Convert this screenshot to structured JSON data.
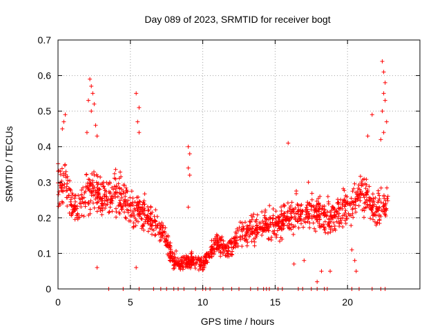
{
  "chart_data": {
    "type": "scatter",
    "title": "Day 089 of 2023, SRMTID for receiver bogt",
    "xlabel": "GPS time / hours",
    "ylabel": "SRMTID / TECUs",
    "xlim": [
      0,
      25.0
    ],
    "ylim": [
      0,
      0.7
    ],
    "x_ticks": [
      0,
      5,
      10,
      15,
      20
    ],
    "x_tick_labels": [
      "0",
      "5",
      "10",
      "15",
      "20"
    ],
    "y_ticks": [
      0,
      0.1,
      0.2,
      0.3,
      0.4,
      0.5,
      0.6,
      0.7
    ],
    "y_tick_labels": [
      "0",
      "0.1",
      "0.2",
      "0.3",
      "0.4",
      "0.5",
      "0.6",
      "0.7"
    ],
    "grid": true,
    "marker": "plus",
    "color": "#ff0000",
    "series": [
      {
        "name": "SRMTID",
        "trend": {
          "x": [
            0.0,
            0.5,
            1.0,
            1.5,
            2.0,
            2.5,
            3.0,
            3.5,
            4.0,
            4.5,
            5.0,
            5.5,
            6.0,
            6.5,
            7.0,
            7.5,
            8.0,
            8.5,
            9.0,
            9.5,
            10.0,
            10.5,
            11.0,
            11.5,
            12.0,
            12.5,
            13.0,
            13.5,
            14.0,
            14.5,
            15.0,
            15.5,
            16.0,
            16.5,
            17.0,
            17.5,
            18.0,
            18.5,
            19.0,
            19.5,
            20.0,
            20.5,
            21.0,
            21.5,
            22.0,
            22.5,
            22.8
          ],
          "y": [
            0.3,
            0.3,
            0.24,
            0.22,
            0.28,
            0.27,
            0.25,
            0.26,
            0.27,
            0.25,
            0.23,
            0.22,
            0.21,
            0.19,
            0.17,
            0.13,
            0.08,
            0.07,
            0.08,
            0.08,
            0.07,
            0.1,
            0.13,
            0.11,
            0.12,
            0.15,
            0.16,
            0.17,
            0.18,
            0.18,
            0.18,
            0.19,
            0.2,
            0.21,
            0.21,
            0.22,
            0.21,
            0.2,
            0.2,
            0.22,
            0.23,
            0.25,
            0.27,
            0.25,
            0.22,
            0.23,
            0.26
          ]
        },
        "outliers": [
          {
            "x": 0.5,
            "y": 0.49
          },
          {
            "x": 0.4,
            "y": 0.47
          },
          {
            "x": 0.3,
            "y": 0.45
          },
          {
            "x": 2.2,
            "y": 0.59
          },
          {
            "x": 2.3,
            "y": 0.57
          },
          {
            "x": 2.4,
            "y": 0.55
          },
          {
            "x": 2.1,
            "y": 0.53
          },
          {
            "x": 2.5,
            "y": 0.52
          },
          {
            "x": 2.3,
            "y": 0.5
          },
          {
            "x": 2.6,
            "y": 0.46
          },
          {
            "x": 2.0,
            "y": 0.44
          },
          {
            "x": 2.7,
            "y": 0.43
          },
          {
            "x": 2.7,
            "y": 0.06
          },
          {
            "x": 5.4,
            "y": 0.55
          },
          {
            "x": 5.6,
            "y": 0.51
          },
          {
            "x": 5.5,
            "y": 0.47
          },
          {
            "x": 5.6,
            "y": 0.44
          },
          {
            "x": 5.4,
            "y": 0.06
          },
          {
            "x": 9.0,
            "y": 0.4
          },
          {
            "x": 9.1,
            "y": 0.38
          },
          {
            "x": 9.0,
            "y": 0.34
          },
          {
            "x": 9.1,
            "y": 0.32
          },
          {
            "x": 9.0,
            "y": 0.23
          },
          {
            "x": 15.9,
            "y": 0.41
          },
          {
            "x": 17.3,
            "y": 0.3
          },
          {
            "x": 16.3,
            "y": 0.07
          },
          {
            "x": 17.0,
            "y": 0.08
          },
          {
            "x": 18.2,
            "y": 0.05
          },
          {
            "x": 17.9,
            "y": 0.02
          },
          {
            "x": 18.8,
            "y": 0.05
          },
          {
            "x": 20.3,
            "y": 0.11
          },
          {
            "x": 20.5,
            "y": 0.08
          },
          {
            "x": 20.6,
            "y": 0.05
          },
          {
            "x": 21.7,
            "y": 0.49
          },
          {
            "x": 21.4,
            "y": 0.43
          },
          {
            "x": 22.4,
            "y": 0.64
          },
          {
            "x": 22.5,
            "y": 0.61
          },
          {
            "x": 22.6,
            "y": 0.58
          },
          {
            "x": 22.5,
            "y": 0.55
          },
          {
            "x": 22.6,
            "y": 0.53
          },
          {
            "x": 22.4,
            "y": 0.5
          },
          {
            "x": 22.7,
            "y": 0.47
          },
          {
            "x": 22.5,
            "y": 0.44
          },
          {
            "x": 22.3,
            "y": 0.42
          }
        ],
        "zero_points_x": [
          3.5,
          4.5,
          5.6,
          6.6,
          7.1,
          7.5,
          8.0,
          8.3,
          8.7,
          9.5,
          10.0,
          10.2,
          10.5,
          11.4,
          12.0,
          12.5,
          13.3,
          13.8,
          14.2,
          14.4,
          14.6,
          15.2,
          15.5,
          16.6,
          16.9,
          17.5,
          17.9,
          18.4,
          18.6,
          20.3,
          20.8,
          21.7,
          22.3,
          22.6
        ]
      }
    ]
  }
}
